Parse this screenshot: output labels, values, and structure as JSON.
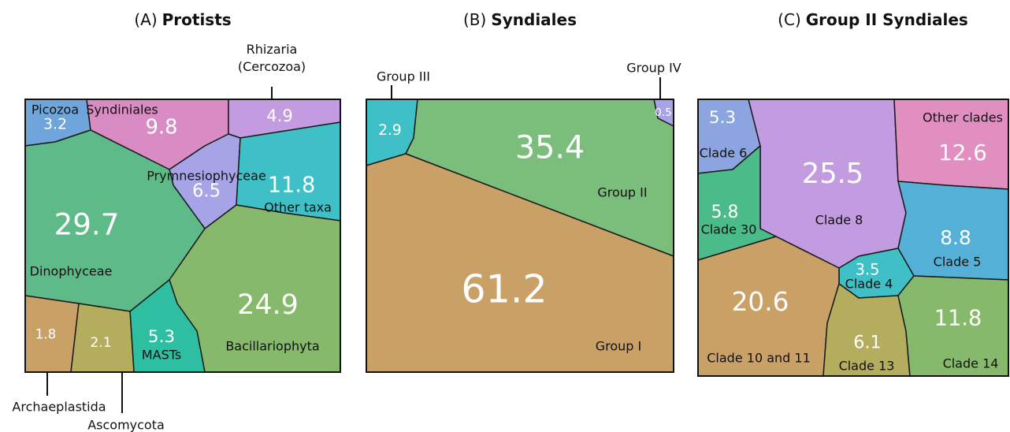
{
  "chart_data": [
    {
      "type": "voronoi-treemap",
      "panel": "(A)",
      "title": "Protists",
      "categories": [
        "Picozoa",
        "Syndiniales",
        "Rhizaria (Cercozoa)",
        "Prymnesiophyceae",
        "Other taxa",
        "Dinophyceae",
        "Bacillariophyta",
        "MASTs",
        "Archaeplastida",
        "Ascomycota"
      ],
      "values": [
        3.2,
        9.8,
        4.9,
        6.5,
        11.8,
        29.7,
        24.9,
        5.3,
        1.8,
        2.1
      ],
      "colors": [
        "#6ea6dc",
        "#d98cc4",
        "#c39be0",
        "#a6a4e6",
        "#3fbfc6",
        "#5fba8a",
        "#86b96c",
        "#2ebfa2",
        "#c9a066",
        "#b5ad5e"
      ]
    },
    {
      "type": "voronoi-treemap",
      "panel": "(B)",
      "title": "Syndiales",
      "categories": [
        "Group III",
        "Group IV",
        "Group II",
        "Group I"
      ],
      "values": [
        2.9,
        0.5,
        35.4,
        61.2
      ],
      "colors": [
        "#3fbfc6",
        "#a6a4e6",
        "#7bbd7a",
        "#c9a066"
      ]
    },
    {
      "type": "voronoi-treemap",
      "panel": "(C)",
      "title": "Group II Syndiales",
      "categories": [
        "Clade 6",
        "Clade 8",
        "Other clades",
        "Clade 30",
        "Clade 5",
        "Clade 4",
        "Clade 10 and 11",
        "Clade 13",
        "Clade 14"
      ],
      "values": [
        5.3,
        25.5,
        12.6,
        5.8,
        8.8,
        3.5,
        20.6,
        6.1,
        11.8
      ],
      "colors": [
        "#8ca5e0",
        "#c39be0",
        "#e08fc0",
        "#4cbb8a",
        "#55b0d8",
        "#3fbfc6",
        "#c9a066",
        "#b5ad5e",
        "#86b96c"
      ]
    }
  ]
}
